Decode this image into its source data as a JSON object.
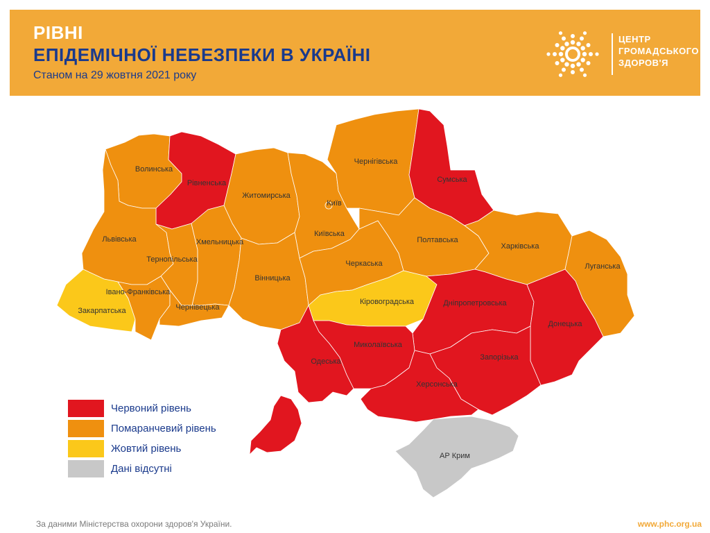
{
  "header": {
    "title_line1": "РІВНІ",
    "title_line2": "ЕПІДЕМІЧНОЇ НЕБЕЗПЕКИ В УКРАЇНІ",
    "date_line": "Станом на 29 жовтня 2021 року",
    "logo_text": [
      "ЦЕНТР",
      "ГРОМАДСЬКОГО",
      "ЗДОРОВ'Я"
    ],
    "logo_icon": "sun-dots-logo-icon"
  },
  "colors": {
    "banner": "#F2A938",
    "red": "#E1161F",
    "orange": "#EF900F",
    "yellow": "#FBC81A",
    "gray": "#C8C8C8",
    "title_blue": "#1a3a8c"
  },
  "legend": [
    {
      "label": "Червоний рівень",
      "level": "red"
    },
    {
      "label": "Помаранчевий рівень",
      "level": "orange"
    },
    {
      "label": "Жовтий рівень",
      "level": "yellow"
    },
    {
      "label": "Дані відсутні",
      "level": "gray"
    }
  ],
  "regions": [
    {
      "name": "Волинська",
      "level": "orange"
    },
    {
      "name": "Рівненська",
      "level": "red"
    },
    {
      "name": "Житомирська",
      "level": "orange"
    },
    {
      "name": "Київ",
      "level": "orange"
    },
    {
      "name": "Київська",
      "level": "orange"
    },
    {
      "name": "Чернігівська",
      "level": "orange"
    },
    {
      "name": "Сумська",
      "level": "red"
    },
    {
      "name": "Львівська",
      "level": "orange"
    },
    {
      "name": "Тернопільська",
      "level": "orange"
    },
    {
      "name": "Хмельницька",
      "level": "orange"
    },
    {
      "name": "Закарпатська",
      "level": "yellow"
    },
    {
      "name": "Івано-Франківська",
      "level": "orange"
    },
    {
      "name": "Чернівецька",
      "level": "orange"
    },
    {
      "name": "Вінницька",
      "level": "orange"
    },
    {
      "name": "Черкаська",
      "level": "orange"
    },
    {
      "name": "Полтавська",
      "level": "orange"
    },
    {
      "name": "Харківська",
      "level": "orange"
    },
    {
      "name": "Луганська",
      "level": "orange"
    },
    {
      "name": "Кіровоградська",
      "level": "yellow"
    },
    {
      "name": "Дніпропетровська",
      "level": "red"
    },
    {
      "name": "Донецька",
      "level": "red"
    },
    {
      "name": "Миколаївська",
      "level": "red"
    },
    {
      "name": "Одеська",
      "level": "red"
    },
    {
      "name": "Запорізька",
      "level": "red"
    },
    {
      "name": "Херсонська",
      "level": "red"
    },
    {
      "name": "АР Крим",
      "level": "gray"
    }
  ],
  "footer": {
    "source": "За даними Міністерства охорони здоров'я України.",
    "url": "www.phc.org.ua"
  }
}
